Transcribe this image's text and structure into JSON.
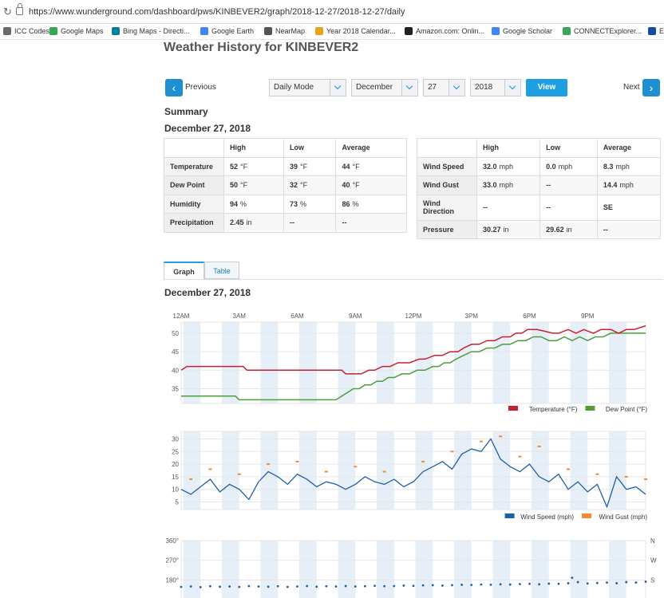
{
  "browser": {
    "url": "https://www.wunderground.com/dashboard/pws/KINBEVER2/graph/2018-12-27/2018-12-27/daily",
    "bookmarks": [
      {
        "label": "ICC Codes",
        "color": "#6a6a6a"
      },
      {
        "label": "Google Maps",
        "color": "#34a853"
      },
      {
        "label": "Bing Maps - Directi...",
        "color": "#00809d"
      },
      {
        "label": "Google Earth",
        "color": "#4285f4"
      },
      {
        "label": "NearMap",
        "color": "#555555"
      },
      {
        "label": "Year 2018 Calendar...",
        "color": "#e8a317"
      },
      {
        "label": "Amazon.com: Onlin...",
        "color": "#222222"
      },
      {
        "label": "Google Scholar",
        "color": "#4285f4"
      },
      {
        "label": "CONNECTExplorer...",
        "color": "#3aa757"
      },
      {
        "label": "EE",
        "color": "#1a4c9c"
      }
    ]
  },
  "page": {
    "title": "Weather History for KINBEVER2",
    "prev_label": "Previous",
    "next_label": "Next",
    "mode": "Daily Mode",
    "month": "December",
    "day": "27",
    "year": "2018",
    "view_label": "View",
    "summary_heading": "Summary",
    "date_heading": "December 27, 2018",
    "graph_date_heading": "December 27, 2018",
    "tabs": [
      "Graph",
      "Table"
    ]
  },
  "summary_left": {
    "headers": [
      "High",
      "Low",
      "Average"
    ],
    "rows": [
      {
        "label": "Temperature",
        "high": "52",
        "high_unit": "°F",
        "low": "39",
        "low_unit": "°F",
        "avg": "44",
        "avg_unit": "°F"
      },
      {
        "label": "Dew Point",
        "high": "50",
        "high_unit": "°F",
        "low": "32",
        "low_unit": "°F",
        "avg": "40",
        "avg_unit": "°F"
      },
      {
        "label": "Humidity",
        "high": "94",
        "high_unit": "%",
        "low": "73",
        "low_unit": "%",
        "avg": "86",
        "avg_unit": "%"
      },
      {
        "label": "Precipitation",
        "high": "2.45",
        "high_unit": "in",
        "low": "--",
        "low_unit": "",
        "avg": "--",
        "avg_unit": ""
      }
    ]
  },
  "summary_right": {
    "headers": [
      "High",
      "Low",
      "Average"
    ],
    "rows": [
      {
        "label": "Wind Speed",
        "high": "32.0",
        "high_unit": "mph",
        "low": "0.0",
        "low_unit": "mph",
        "avg": "8.3",
        "avg_unit": "mph"
      },
      {
        "label": "Wind Gust",
        "high": "33.0",
        "high_unit": "mph",
        "low": "--",
        "low_unit": "",
        "avg": "14.4",
        "avg_unit": "mph"
      },
      {
        "label": "Wind Direction",
        "high": "--",
        "high_unit": "",
        "low": "--",
        "low_unit": "",
        "avg": "SE",
        "avg_unit": ""
      },
      {
        "label": "Pressure",
        "high": "30.27",
        "high_unit": "in",
        "low": "29.62",
        "low_unit": "in",
        "avg": "--",
        "avg_unit": ""
      }
    ]
  },
  "colors": {
    "accent": "#1ea0e0",
    "temperature": "#c8202f",
    "dew_point": "#4b9e3a",
    "wind_speed": "#1f5fa8",
    "wind_gust": "#f08a3a",
    "band": "#e6eef8"
  },
  "chart_data": [
    {
      "type": "line",
      "x_ticks": [
        "12AM",
        "3AM",
        "6AM",
        "9AM",
        "12PM",
        "3PM",
        "6PM",
        "9PM"
      ],
      "y_ticks": [
        35,
        40,
        45,
        50
      ],
      "ylim": [
        31,
        53
      ],
      "xlim": [
        0,
        24
      ],
      "legend_placement": "bottom-right",
      "series": [
        {
          "name": "Temperature (°F)",
          "x": [
            0,
            0.3,
            3.2,
            3.4,
            8.3,
            8.5,
            9.3,
            9.7,
            10,
            10.4,
            10.8,
            11.2,
            11.8,
            12.3,
            12.6,
            13.1,
            13.5,
            13.9,
            14.3,
            14.6,
            15,
            15.4,
            15.8,
            16.2,
            16.6,
            17,
            17.3,
            17.6,
            17.9,
            18.4,
            19.2,
            19.5,
            20,
            20.4,
            20.8,
            21.3,
            21.7,
            22.2,
            22.6,
            23,
            23.4,
            24
          ],
          "values": [
            40,
            41,
            41,
            40,
            40,
            39,
            39,
            40,
            40,
            41,
            41,
            42,
            42,
            43,
            43,
            44,
            44,
            45,
            45,
            46,
            47,
            47,
            48,
            48,
            49,
            49,
            50,
            50,
            51,
            51,
            50,
            50,
            51,
            50,
            51,
            50,
            51,
            51,
            50,
            51,
            51,
            52
          ]
        },
        {
          "name": "Dew Point (°F)",
          "x": [
            0,
            2.8,
            3,
            8,
            8.3,
            8.6,
            8.9,
            9.2,
            9.5,
            9.8,
            10.1,
            10.4,
            10.7,
            11,
            11.4,
            11.8,
            12.2,
            12.6,
            13,
            13.3,
            13.6,
            13.9,
            14.2,
            14.6,
            15,
            15.4,
            15.8,
            16.2,
            16.6,
            17,
            17.4,
            17.8,
            18.2,
            18.6,
            19,
            19.4,
            19.8,
            20.2,
            20.6,
            21,
            21.4,
            21.8,
            22.2,
            22.6,
            23,
            24
          ],
          "values": [
            33,
            33,
            32,
            32,
            33,
            34,
            35,
            35,
            36,
            36,
            37,
            37,
            38,
            38,
            39,
            39,
            40,
            40,
            41,
            41,
            42,
            42,
            43,
            44,
            45,
            45,
            46,
            46,
            47,
            47,
            48,
            48,
            49,
            49,
            48,
            48,
            49,
            48,
            49,
            48,
            49,
            49,
            50,
            50,
            50,
            50
          ]
        }
      ]
    },
    {
      "type": "line",
      "y_ticks": [
        5,
        10,
        15,
        20,
        25,
        30
      ],
      "ylim": [
        2,
        33
      ],
      "xlim": [
        0,
        24
      ],
      "legend_placement": "bottom-right",
      "series": [
        {
          "name": "Wind Speed (mph)",
          "x": [
            0,
            0.5,
            1,
            1.5,
            2,
            2.5,
            3,
            3.5,
            4,
            4.5,
            5,
            5.5,
            6,
            6.5,
            7,
            7.5,
            8,
            8.5,
            9,
            9.5,
            10,
            10.5,
            11,
            11.5,
            12,
            12.5,
            13,
            13.5,
            14,
            14.5,
            15,
            15.5,
            16,
            16.5,
            17,
            17.5,
            18,
            18.5,
            19,
            19.5,
            20,
            20.5,
            21,
            21.5,
            22,
            22.5,
            23,
            23.5,
            24
          ],
          "values": [
            10,
            8,
            11,
            14,
            9,
            12,
            10,
            6,
            13,
            17,
            15,
            12,
            16,
            14,
            11,
            13,
            12,
            10,
            12,
            15,
            13,
            12,
            14,
            11,
            13,
            17,
            19,
            21,
            18,
            24,
            26,
            25,
            30,
            22,
            19,
            17,
            20,
            15,
            13,
            16,
            10,
            13,
            9,
            12,
            3,
            15,
            10,
            11,
            8
          ]
        },
        {
          "name": "Wind Gust (mph)",
          "x": [
            0.5,
            1.5,
            3,
            4.5,
            6,
            7.5,
            9,
            10.5,
            12.5,
            14,
            15.5,
            16.5,
            17.5,
            18.5,
            20,
            21.5,
            23,
            24
          ],
          "values": [
            14,
            18,
            16,
            20,
            21,
            17,
            19,
            17,
            21,
            25,
            29,
            31,
            23,
            27,
            18,
            16,
            15,
            14
          ]
        }
      ]
    },
    {
      "type": "scatter",
      "y_ticks": [
        "360°",
        "270°",
        "180°"
      ],
      "right_ticks": [
        "N",
        "W",
        "S"
      ],
      "ylim": [
        90,
        360
      ],
      "xlim": [
        0,
        24
      ],
      "series": [
        {
          "name": "Wind Direction",
          "x": [
            0,
            0.5,
            1,
            1.5,
            2,
            2.5,
            3,
            3.5,
            4,
            4.5,
            5,
            5.5,
            6,
            6.5,
            7,
            7.5,
            8,
            8.5,
            9,
            9.5,
            10,
            10.5,
            11,
            11.5,
            12,
            12.5,
            13,
            13.5,
            14,
            14.5,
            15,
            15.5,
            16,
            16.5,
            17,
            17.5,
            18,
            18.5,
            19,
            19.5,
            20,
            20.2,
            20.5,
            21,
            21.5,
            22,
            22.5,
            23,
            23.5,
            24
          ],
          "values": [
            148,
            150,
            147,
            151,
            149,
            150,
            148,
            152,
            150,
            149,
            151,
            148,
            150,
            152,
            149,
            151,
            150,
            152,
            150,
            151,
            153,
            151,
            152,
            154,
            153,
            155,
            156,
            154,
            156,
            158,
            157,
            159,
            158,
            160,
            159,
            161,
            162,
            160,
            163,
            162,
            165,
            190,
            170,
            164,
            166,
            168,
            165,
            170,
            168,
            172
          ]
        }
      ]
    }
  ]
}
